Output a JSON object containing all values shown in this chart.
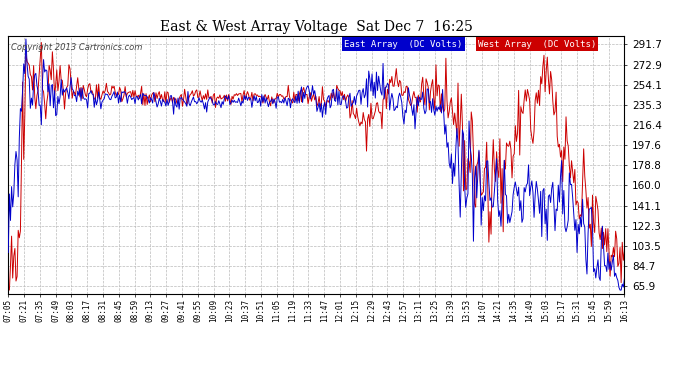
{
  "title": "East & West Array Voltage  Sat Dec 7  16:25",
  "copyright": "Copyright 2013 Cartronics.com",
  "legend_east": "East Array  (DC Volts)",
  "legend_west": "West Array  (DC Volts)",
  "east_color": "#0000cc",
  "west_color": "#cc0000",
  "bg_color": "#ffffff",
  "plot_bg_color": "#ffffff",
  "grid_color": "#bbbbbb",
  "yticks": [
    65.9,
    84.7,
    103.5,
    122.3,
    141.1,
    160.0,
    178.8,
    197.6,
    216.4,
    235.3,
    254.1,
    272.9,
    291.7
  ],
  "ymin": 58,
  "ymax": 300,
  "x_labels": [
    "07:05",
    "07:21",
    "07:35",
    "07:49",
    "08:03",
    "08:17",
    "08:31",
    "08:45",
    "08:59",
    "09:13",
    "09:27",
    "09:41",
    "09:55",
    "10:09",
    "10:23",
    "10:37",
    "10:51",
    "11:05",
    "11:19",
    "11:33",
    "11:47",
    "12:01",
    "12:15",
    "12:29",
    "12:43",
    "12:57",
    "13:11",
    "13:25",
    "13:39",
    "13:53",
    "14:07",
    "14:21",
    "14:35",
    "14:49",
    "15:03",
    "15:17",
    "15:31",
    "15:45",
    "15:59",
    "16:13"
  ]
}
